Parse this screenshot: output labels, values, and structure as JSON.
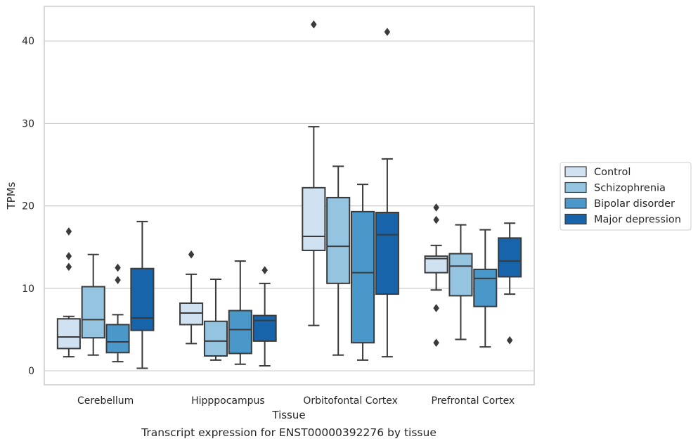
{
  "caption": "Transcript expression for ENST00000392276 by tissue",
  "chart_data": {
    "type": "box",
    "xlabel": "Tissue",
    "ylabel": "TPMs",
    "ylim": [
      -1.7,
      44.2
    ],
    "yticks": [
      0,
      10,
      20,
      30,
      40
    ],
    "grid": "horizontal",
    "legend_position": "outside-right",
    "categories": [
      "Cerebellum",
      "Hipppocampus",
      "Orbitofontal Cortex",
      "Prefrontal Cortex"
    ],
    "series": [
      {
        "name": "Control",
        "color": "#d0e1f2",
        "boxes": [
          {
            "whislo": 1.7,
            "q1": 2.7,
            "med": 4.1,
            "q3": 6.3,
            "whishi": 6.6,
            "fliers": [
              12.6,
              13.9,
              16.9
            ]
          },
          {
            "whislo": 3.3,
            "q1": 5.6,
            "med": 7.0,
            "q3": 8.2,
            "whishi": 11.7,
            "fliers": [
              14.1
            ]
          },
          {
            "whislo": 5.5,
            "q1": 14.6,
            "med": 16.3,
            "q3": 22.2,
            "whishi": 29.6,
            "fliers": [
              42.0
            ]
          },
          {
            "whislo": 9.8,
            "q1": 11.9,
            "med": 13.6,
            "q3": 13.9,
            "whishi": 15.2,
            "fliers": [
              3.4,
              7.6,
              18.3,
              19.8
            ]
          }
        ]
      },
      {
        "name": "Schizophrenia",
        "color": "#94c4df",
        "boxes": [
          {
            "whislo": 1.9,
            "q1": 4.0,
            "med": 6.2,
            "q3": 10.2,
            "whishi": 14.1,
            "fliers": []
          },
          {
            "whislo": 1.3,
            "q1": 1.8,
            "med": 3.6,
            "q3": 6.0,
            "whishi": 11.1,
            "fliers": []
          },
          {
            "whislo": 1.9,
            "q1": 10.6,
            "med": 15.1,
            "q3": 21.0,
            "whishi": 24.8,
            "fliers": []
          },
          {
            "whislo": 3.8,
            "q1": 9.1,
            "med": 12.7,
            "q3": 14.2,
            "whishi": 17.7,
            "fliers": []
          }
        ]
      },
      {
        "name": "Bipolar disorder",
        "color": "#4a98c9",
        "boxes": [
          {
            "whislo": 1.1,
            "q1": 2.2,
            "med": 3.5,
            "q3": 5.6,
            "whishi": 6.8,
            "fliers": [
              11.0,
              12.5
            ]
          },
          {
            "whislo": 0.8,
            "q1": 2.1,
            "med": 5.0,
            "q3": 7.3,
            "whishi": 13.3,
            "fliers": []
          },
          {
            "whislo": 1.3,
            "q1": 3.4,
            "med": 11.9,
            "q3": 19.3,
            "whishi": 22.6,
            "fliers": []
          },
          {
            "whislo": 2.9,
            "q1": 7.8,
            "med": 11.2,
            "q3": 12.3,
            "whishi": 17.1,
            "fliers": []
          }
        ]
      },
      {
        "name": "Major depression",
        "color": "#1764ab",
        "boxes": [
          {
            "whislo": 0.3,
            "q1": 4.9,
            "med": 6.4,
            "q3": 12.4,
            "whishi": 18.1,
            "fliers": []
          },
          {
            "whislo": 0.6,
            "q1": 3.6,
            "med": 6.1,
            "q3": 6.7,
            "whishi": 10.6,
            "fliers": [
              12.2
            ]
          },
          {
            "whislo": 1.7,
            "q1": 9.3,
            "med": 16.5,
            "q3": 19.2,
            "whishi": 25.7,
            "fliers": [
              41.1
            ]
          },
          {
            "whislo": 9.3,
            "q1": 11.4,
            "med": 13.3,
            "q3": 16.1,
            "whishi": 17.9,
            "fliers": [
              3.7
            ]
          }
        ]
      }
    ]
  }
}
